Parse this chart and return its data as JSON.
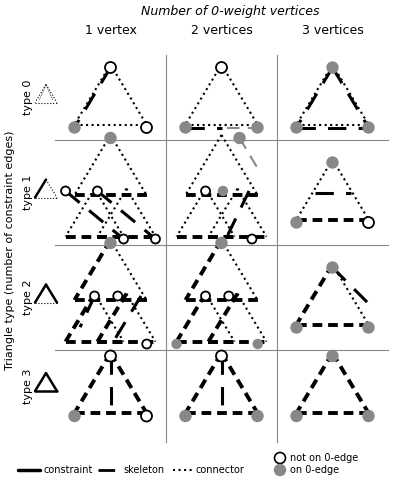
{
  "title": "Number of 0-weight vertices",
  "ylabel": "Triangle type (number of constraint edges)",
  "col_labels": [
    "1 vertex",
    "2 vertices",
    "3 vertices"
  ],
  "row_labels": [
    "type 0",
    "type 1",
    "type 2",
    "type 3"
  ],
  "black": "#000000",
  "gray": "#888888",
  "white": "#ffffff",
  "bg": "#ffffff"
}
